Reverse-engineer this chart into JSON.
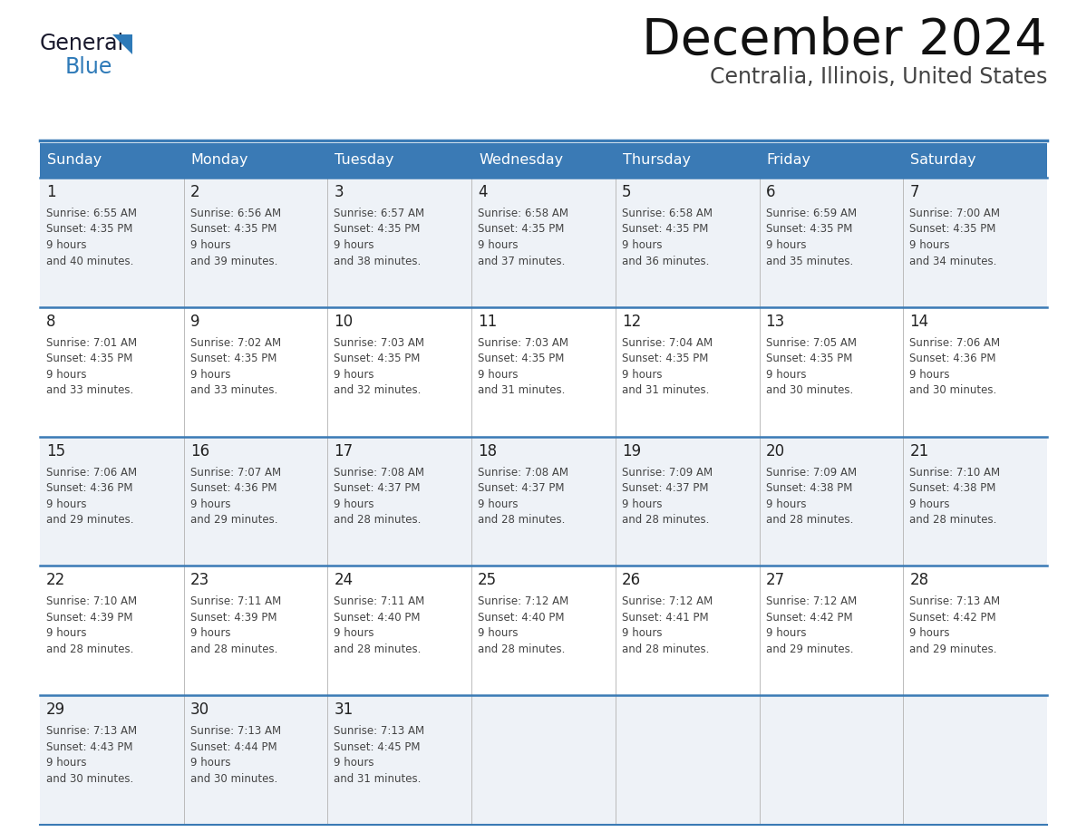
{
  "title": "December 2024",
  "subtitle": "Centralia, Illinois, United States",
  "header_color": "#3a7ab5",
  "header_text_color": "#ffffff",
  "cell_bg_even": "#eef2f7",
  "cell_bg_odd": "#ffffff",
  "border_color": "#3a7ab5",
  "separator_color": "#3a7ab5",
  "day_names": [
    "Sunday",
    "Monday",
    "Tuesday",
    "Wednesday",
    "Thursday",
    "Friday",
    "Saturday"
  ],
  "days": [
    {
      "day": 1,
      "col": 0,
      "row": 0,
      "sunrise": "6:55 AM",
      "sunset": "4:35 PM",
      "daylight": "9 hours",
      "daylight2": "and 40 minutes."
    },
    {
      "day": 2,
      "col": 1,
      "row": 0,
      "sunrise": "6:56 AM",
      "sunset": "4:35 PM",
      "daylight": "9 hours",
      "daylight2": "and 39 minutes."
    },
    {
      "day": 3,
      "col": 2,
      "row": 0,
      "sunrise": "6:57 AM",
      "sunset": "4:35 PM",
      "daylight": "9 hours",
      "daylight2": "and 38 minutes."
    },
    {
      "day": 4,
      "col": 3,
      "row": 0,
      "sunrise": "6:58 AM",
      "sunset": "4:35 PM",
      "daylight": "9 hours",
      "daylight2": "and 37 minutes."
    },
    {
      "day": 5,
      "col": 4,
      "row": 0,
      "sunrise": "6:58 AM",
      "sunset": "4:35 PM",
      "daylight": "9 hours",
      "daylight2": "and 36 minutes."
    },
    {
      "day": 6,
      "col": 5,
      "row": 0,
      "sunrise": "6:59 AM",
      "sunset": "4:35 PM",
      "daylight": "9 hours",
      "daylight2": "and 35 minutes."
    },
    {
      "day": 7,
      "col": 6,
      "row": 0,
      "sunrise": "7:00 AM",
      "sunset": "4:35 PM",
      "daylight": "9 hours",
      "daylight2": "and 34 minutes."
    },
    {
      "day": 8,
      "col": 0,
      "row": 1,
      "sunrise": "7:01 AM",
      "sunset": "4:35 PM",
      "daylight": "9 hours",
      "daylight2": "and 33 minutes."
    },
    {
      "day": 9,
      "col": 1,
      "row": 1,
      "sunrise": "7:02 AM",
      "sunset": "4:35 PM",
      "daylight": "9 hours",
      "daylight2": "and 33 minutes."
    },
    {
      "day": 10,
      "col": 2,
      "row": 1,
      "sunrise": "7:03 AM",
      "sunset": "4:35 PM",
      "daylight": "9 hours",
      "daylight2": "and 32 minutes."
    },
    {
      "day": 11,
      "col": 3,
      "row": 1,
      "sunrise": "7:03 AM",
      "sunset": "4:35 PM",
      "daylight": "9 hours",
      "daylight2": "and 31 minutes."
    },
    {
      "day": 12,
      "col": 4,
      "row": 1,
      "sunrise": "7:04 AM",
      "sunset": "4:35 PM",
      "daylight": "9 hours",
      "daylight2": "and 31 minutes."
    },
    {
      "day": 13,
      "col": 5,
      "row": 1,
      "sunrise": "7:05 AM",
      "sunset": "4:35 PM",
      "daylight": "9 hours",
      "daylight2": "and 30 minutes."
    },
    {
      "day": 14,
      "col": 6,
      "row": 1,
      "sunrise": "7:06 AM",
      "sunset": "4:36 PM",
      "daylight": "9 hours",
      "daylight2": "and 30 minutes."
    },
    {
      "day": 15,
      "col": 0,
      "row": 2,
      "sunrise": "7:06 AM",
      "sunset": "4:36 PM",
      "daylight": "9 hours",
      "daylight2": "and 29 minutes."
    },
    {
      "day": 16,
      "col": 1,
      "row": 2,
      "sunrise": "7:07 AM",
      "sunset": "4:36 PM",
      "daylight": "9 hours",
      "daylight2": "and 29 minutes."
    },
    {
      "day": 17,
      "col": 2,
      "row": 2,
      "sunrise": "7:08 AM",
      "sunset": "4:37 PM",
      "daylight": "9 hours",
      "daylight2": "and 28 minutes."
    },
    {
      "day": 18,
      "col": 3,
      "row": 2,
      "sunrise": "7:08 AM",
      "sunset": "4:37 PM",
      "daylight": "9 hours",
      "daylight2": "and 28 minutes."
    },
    {
      "day": 19,
      "col": 4,
      "row": 2,
      "sunrise": "7:09 AM",
      "sunset": "4:37 PM",
      "daylight": "9 hours",
      "daylight2": "and 28 minutes."
    },
    {
      "day": 20,
      "col": 5,
      "row": 2,
      "sunrise": "7:09 AM",
      "sunset": "4:38 PM",
      "daylight": "9 hours",
      "daylight2": "and 28 minutes."
    },
    {
      "day": 21,
      "col": 6,
      "row": 2,
      "sunrise": "7:10 AM",
      "sunset": "4:38 PM",
      "daylight": "9 hours",
      "daylight2": "and 28 minutes."
    },
    {
      "day": 22,
      "col": 0,
      "row": 3,
      "sunrise": "7:10 AM",
      "sunset": "4:39 PM",
      "daylight": "9 hours",
      "daylight2": "and 28 minutes."
    },
    {
      "day": 23,
      "col": 1,
      "row": 3,
      "sunrise": "7:11 AM",
      "sunset": "4:39 PM",
      "daylight": "9 hours",
      "daylight2": "and 28 minutes."
    },
    {
      "day": 24,
      "col": 2,
      "row": 3,
      "sunrise": "7:11 AM",
      "sunset": "4:40 PM",
      "daylight": "9 hours",
      "daylight2": "and 28 minutes."
    },
    {
      "day": 25,
      "col": 3,
      "row": 3,
      "sunrise": "7:12 AM",
      "sunset": "4:40 PM",
      "daylight": "9 hours",
      "daylight2": "and 28 minutes."
    },
    {
      "day": 26,
      "col": 4,
      "row": 3,
      "sunrise": "7:12 AM",
      "sunset": "4:41 PM",
      "daylight": "9 hours",
      "daylight2": "and 28 minutes."
    },
    {
      "day": 27,
      "col": 5,
      "row": 3,
      "sunrise": "7:12 AM",
      "sunset": "4:42 PM",
      "daylight": "9 hours",
      "daylight2": "and 29 minutes."
    },
    {
      "day": 28,
      "col": 6,
      "row": 3,
      "sunrise": "7:13 AM",
      "sunset": "4:42 PM",
      "daylight": "9 hours",
      "daylight2": "and 29 minutes."
    },
    {
      "day": 29,
      "col": 0,
      "row": 4,
      "sunrise": "7:13 AM",
      "sunset": "4:43 PM",
      "daylight": "9 hours",
      "daylight2": "and 30 minutes."
    },
    {
      "day": 30,
      "col": 1,
      "row": 4,
      "sunrise": "7:13 AM",
      "sunset": "4:44 PM",
      "daylight": "9 hours",
      "daylight2": "and 30 minutes."
    },
    {
      "day": 31,
      "col": 2,
      "row": 4,
      "sunrise": "7:13 AM",
      "sunset": "4:45 PM",
      "daylight": "9 hours",
      "daylight2": "and 31 minutes."
    }
  ],
  "logo_text1": "General",
  "logo_text2": "Blue",
  "logo_color1": "#1a1a2e",
  "logo_color2": "#2e7ab8",
  "title_fontsize": 40,
  "subtitle_fontsize": 17,
  "header_fontsize": 11.5,
  "day_num_fontsize": 12,
  "cell_text_fontsize": 8.5
}
